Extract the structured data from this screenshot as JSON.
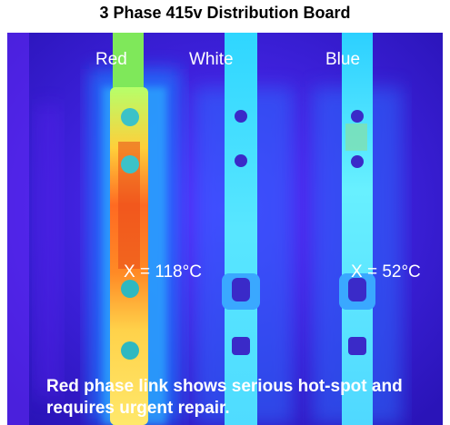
{
  "title": "3 Phase 415v Distribution Board",
  "phases": {
    "red": "Red",
    "white": "White",
    "blue": "Blue"
  },
  "readings": {
    "red": "X = 118°C",
    "blue": "X = 52°C"
  },
  "caption": "Red phase link shows serious hot-spot and requires urgent repair.",
  "colors": {
    "background": "#3a1fd6",
    "hot": "#ff5a1e",
    "warm": "#ffe54a",
    "cool": "#7ef0ff"
  }
}
